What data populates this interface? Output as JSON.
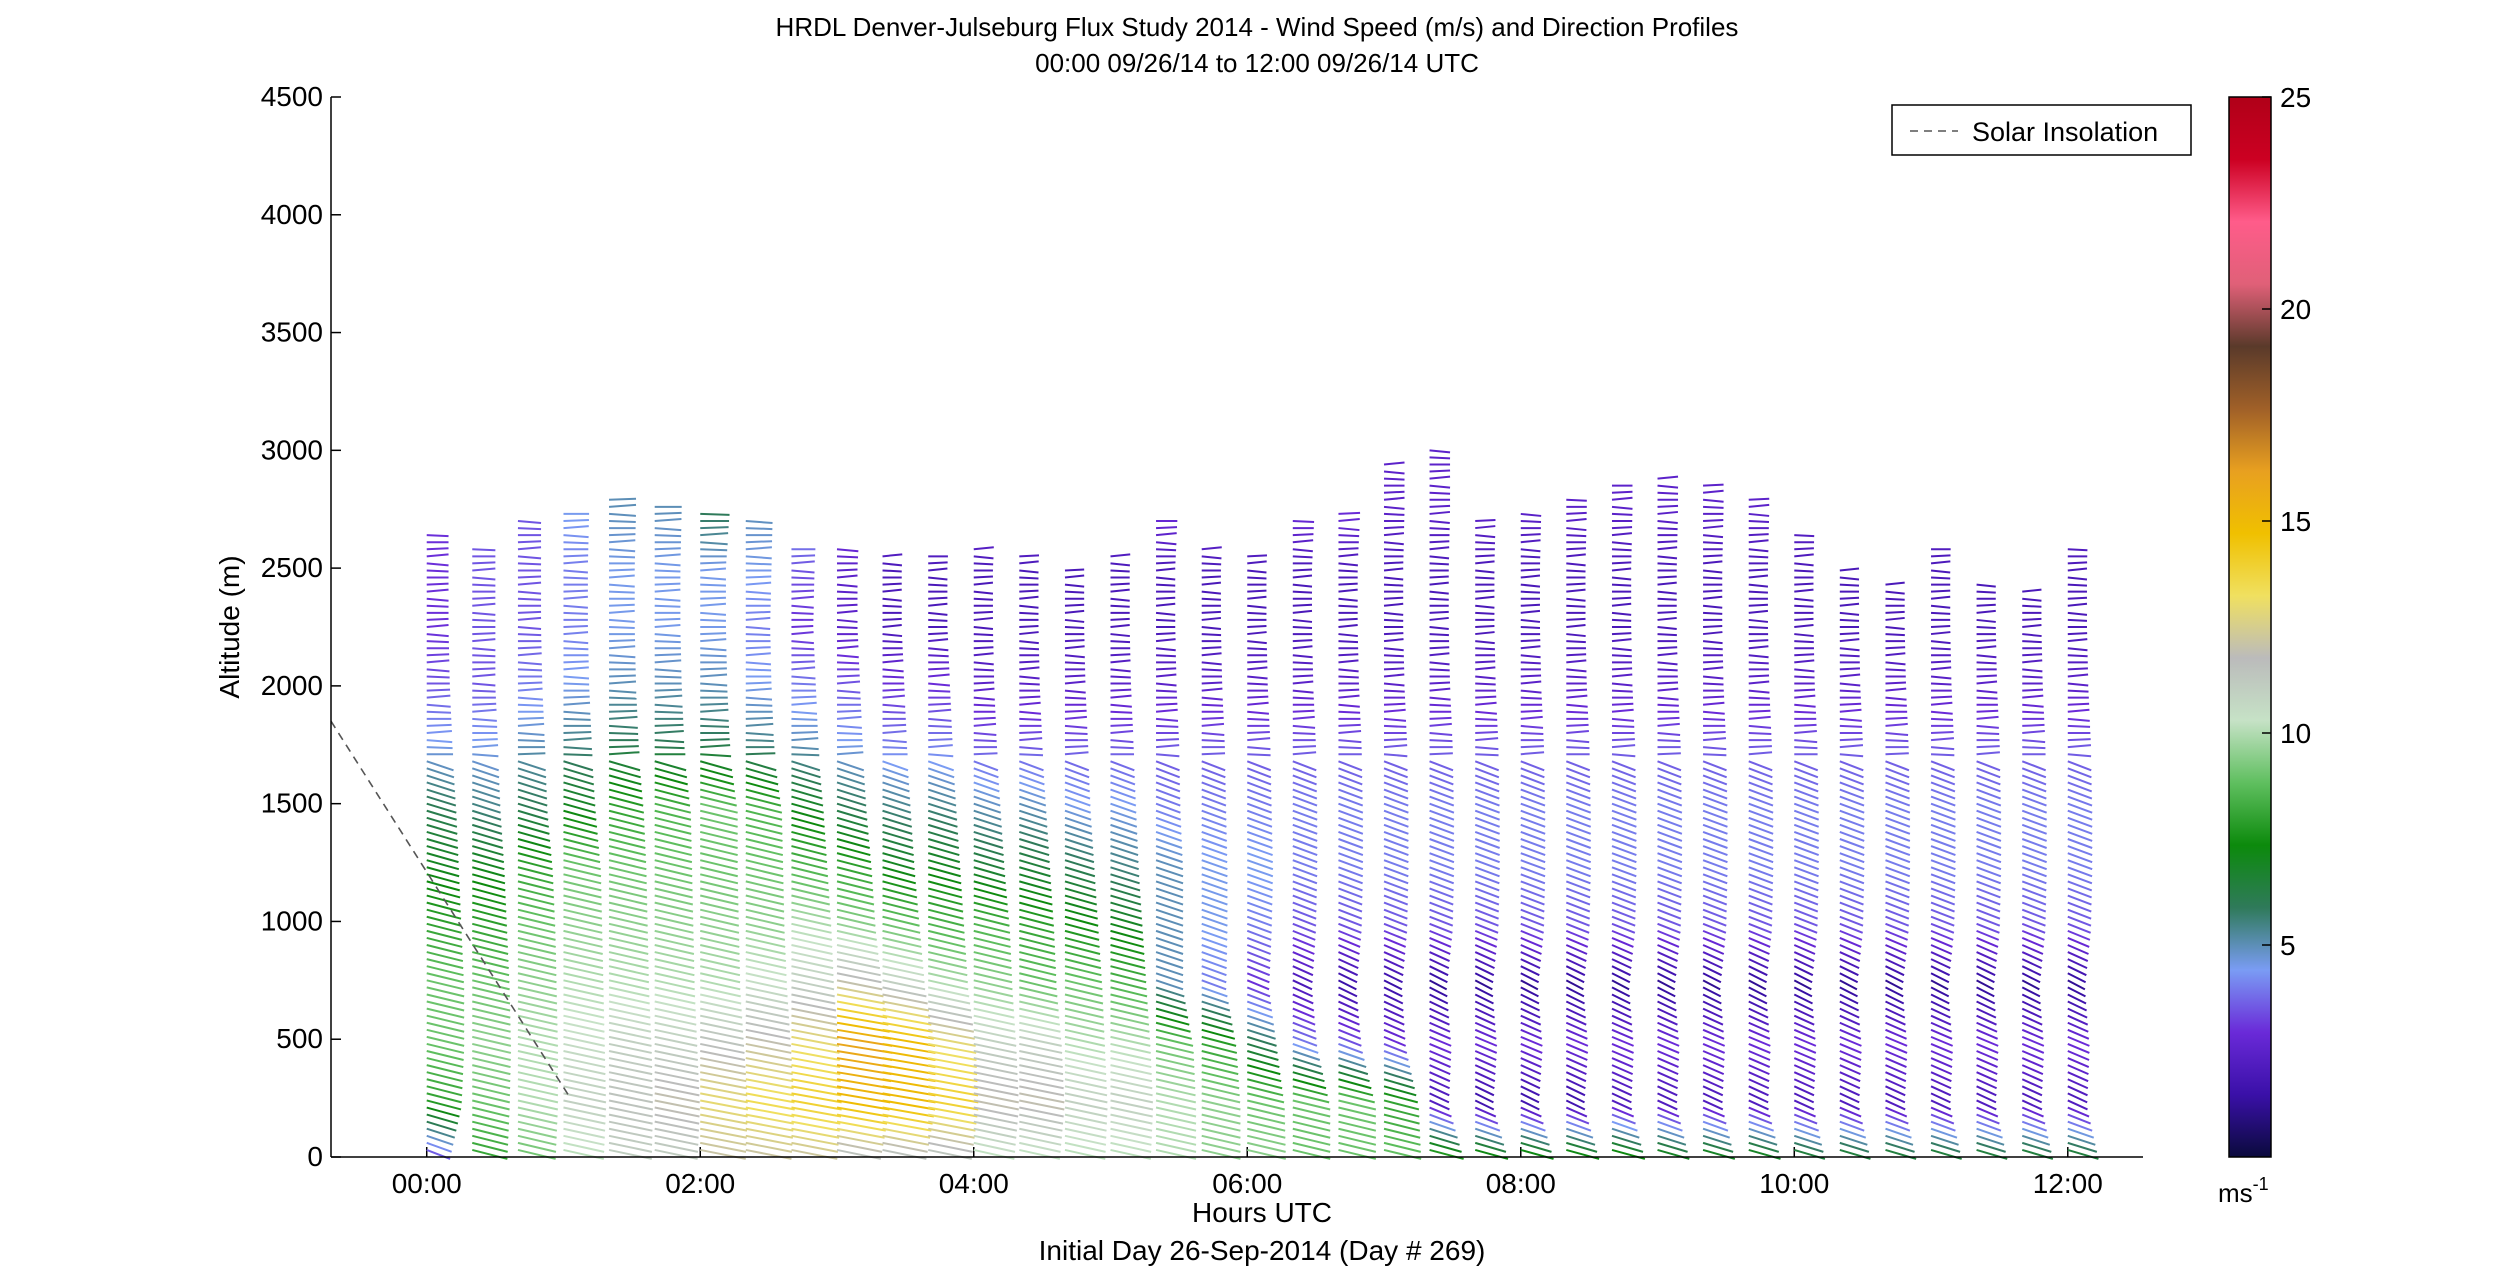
{
  "chart_data": {
    "type": "wind-barb-profile",
    "title": "HRDL Denver-Julseburg Flux Study 2014 - Wind Speed (m/s) and Direction Profiles",
    "subtitle": "00:00 09/26/14 to 12:00 09/26/14  UTC",
    "xlabel": "Hours UTC",
    "xlabel2": "Initial Day 26-Sep-2014 (Day # 269)",
    "ylabel": "Altitude (m)",
    "xlim": [
      -0.7,
      12.55
    ],
    "ylim": [
      0,
      4500
    ],
    "x_ticks": [
      0,
      2,
      4,
      6,
      8,
      10,
      12
    ],
    "x_tick_labels": [
      "00:00",
      "02:00",
      "04:00",
      "06:00",
      "08:00",
      "10:00",
      "12:00"
    ],
    "y_ticks": [
      0,
      500,
      1000,
      1500,
      2000,
      2500,
      3000,
      3500,
      4000,
      4500
    ],
    "y_tick_labels": [
      "0",
      "500",
      "1000",
      "1500",
      "2000",
      "2500",
      "3000",
      "3500",
      "4000",
      "4500"
    ],
    "legend": {
      "position": "top-right",
      "entries": [
        "Solar Insolation"
      ]
    },
    "solar_insolation": {
      "x": [
        -0.7,
        1.05
      ],
      "y": [
        1850,
        250
      ]
    },
    "colorbar": {
      "range": [
        0,
        25
      ],
      "ticks": [
        5,
        10,
        15,
        20,
        25
      ],
      "tick_labels": [
        "5",
        "10",
        "15",
        "20",
        "25"
      ],
      "unit_label": "ms",
      "unit_exponent": "-1",
      "colormap": [
        "#0a0a3c",
        "#3a10a8",
        "#6a2ad8",
        "#7a9cf4",
        "#2f7a5a",
        "#0c8a0c",
        "#5fbf5f",
        "#c6e2c6",
        "#bbbbbb",
        "#f0e060",
        "#f0c000",
        "#e8a020",
        "#a06028",
        "#5a3a2a",
        "#e06078",
        "#ff5c8a",
        "#cc0022",
        "#b00018"
      ]
    },
    "profile_times_hours": [
      0,
      0.333,
      0.667,
      1.0,
      1.333,
      1.667,
      2.0,
      2.333,
      2.667,
      3.0,
      3.333,
      3.667,
      4.0,
      4.333,
      4.667,
      5.0,
      5.333,
      5.667,
      6.0,
      6.333,
      6.667,
      7.0,
      7.333,
      7.667,
      8.0,
      8.333,
      8.667,
      9.0,
      9.333,
      9.667,
      10.0,
      10.333,
      10.667,
      11.0,
      11.333,
      11.667,
      12.0
    ],
    "profile_top_altitude_m": [
      2650,
      2600,
      2700,
      2750,
      2800,
      2780,
      2750,
      2700,
      2600,
      2580,
      2560,
      2560,
      2580,
      2560,
      2500,
      2550,
      2700,
      2600,
      2550,
      2700,
      2750,
      2950,
      3000,
      2700,
      2750,
      2800,
      2850,
      2900,
      2850,
      2800,
      2650,
      2500,
      2450,
      2600,
      2450,
      2400,
      2600
    ],
    "speed_profiles_ms": {
      "altitudes_m": [
        0,
        250,
        500,
        750,
        1000,
        1250,
        1500,
        1750,
        2000,
        2250,
        2500,
        2750
      ],
      "profiles": [
        [
          3,
          8,
          9,
          9,
          8,
          7,
          6,
          4.5,
          3.5,
          3,
          3,
          3
        ],
        [
          8,
          9,
          9.5,
          9,
          8,
          7,
          5.5,
          4.5,
          3.5,
          3.5,
          3.5,
          3.5
        ],
        [
          9,
          10,
          10,
          9.5,
          9,
          8,
          6,
          5,
          4,
          3.5,
          3.5,
          3.5
        ],
        [
          10,
          11,
          10.5,
          10,
          9.5,
          9,
          7,
          5.5,
          4.5,
          4,
          4,
          4.5
        ],
        [
          11,
          11.5,
          11,
          10,
          9.5,
          9,
          8,
          6,
          5,
          4.5,
          4.5,
          5
        ],
        [
          11,
          12,
          11,
          10,
          9.5,
          9,
          8.5,
          6,
          5,
          4.5,
          4.5,
          5
        ],
        [
          12,
          13,
          11.5,
          10,
          9.5,
          9,
          9,
          6,
          5,
          4.5,
          4.5,
          6
        ],
        [
          12,
          13.5,
          12,
          10.5,
          9.5,
          9,
          8.5,
          5.5,
          4.5,
          4,
          4.5,
          5
        ],
        [
          12,
          14,
          13,
          11,
          10,
          8.5,
          7,
          5,
          4,
          3,
          3.5,
          4.5
        ],
        [
          11,
          15,
          16,
          12,
          9.5,
          8,
          6,
          4.5,
          3.5,
          2.5,
          2.5,
          3.5
        ],
        [
          11,
          15,
          15,
          11,
          9,
          7,
          5.5,
          4,
          3,
          2,
          2,
          3
        ],
        [
          11,
          14,
          13,
          10,
          8.5,
          7,
          5.5,
          4,
          3,
          2,
          2,
          3
        ],
        [
          10,
          12,
          11,
          9.5,
          8.5,
          6.5,
          5,
          3.5,
          2.5,
          2,
          2,
          3
        ],
        [
          10,
          12,
          11,
          9,
          8,
          6.5,
          5,
          3.5,
          2.5,
          2,
          2,
          3
        ],
        [
          10,
          11,
          10,
          9,
          7.5,
          6,
          4.5,
          3.5,
          2.5,
          2,
          2,
          3
        ],
        [
          10,
          11,
          10,
          8.5,
          7,
          5.5,
          4.5,
          3.5,
          2.5,
          2,
          2,
          3
        ],
        [
          10,
          10,
          9,
          5,
          5,
          5,
          4,
          3.5,
          2.5,
          2,
          2,
          3
        ],
        [
          9.5,
          9.5,
          8,
          4,
          4.5,
          4.5,
          4,
          3.5,
          2.5,
          2,
          2,
          3
        ],
        [
          9.5,
          9,
          6,
          3,
          4,
          4.5,
          4,
          3.5,
          2.5,
          2,
          2,
          3
        ],
        [
          9,
          9,
          4,
          2,
          3.5,
          4,
          4,
          3.5,
          2.5,
          2,
          2,
          3
        ],
        [
          9,
          9,
          3.5,
          1.5,
          3.5,
          4,
          4,
          3.5,
          2.5,
          2,
          2,
          3
        ],
        [
          9,
          8,
          3,
          1.5,
          3.5,
          4,
          4,
          3.5,
          2.5,
          2,
          2,
          2.5
        ],
        [
          8.5,
          2,
          3,
          1.2,
          3.5,
          4,
          4,
          3.5,
          2.5,
          2,
          2,
          2.5
        ],
        [
          8,
          1.5,
          3,
          1.2,
          3.5,
          4,
          4,
          3.5,
          2.5,
          2,
          2,
          2.5
        ],
        [
          8,
          1.5,
          3,
          1.2,
          3.5,
          4,
          4,
          3.5,
          2.5,
          2,
          2,
          2.5
        ],
        [
          8,
          1.5,
          3,
          1.2,
          3.5,
          4,
          4,
          3.5,
          2.5,
          2,
          2,
          2.5
        ],
        [
          8,
          2,
          3,
          1.2,
          3.5,
          4,
          4,
          3.5,
          2.5,
          2,
          2,
          2.5
        ],
        [
          7.5,
          2,
          3,
          1.2,
          3.5,
          4,
          4,
          3.5,
          2.5,
          2,
          2,
          2.5
        ],
        [
          7.5,
          2,
          3,
          1.2,
          3.5,
          4,
          4,
          3.5,
          2.5,
          2,
          2,
          2.5
        ],
        [
          7.5,
          2,
          3,
          1.2,
          3.5,
          4,
          4,
          3.5,
          2.5,
          2,
          2,
          2.5
        ],
        [
          7,
          2,
          3,
          1.2,
          3.5,
          4,
          4,
          3.5,
          2.5,
          2,
          2,
          2.5
        ],
        [
          7,
          2,
          3,
          1.2,
          3.5,
          4,
          4,
          3.5,
          2.5,
          2,
          2,
          2.5
        ],
        [
          7,
          2,
          3,
          1.2,
          3.5,
          4,
          4,
          3.5,
          2.5,
          2,
          2,
          2.5
        ],
        [
          7,
          2,
          3,
          1.2,
          3.5,
          4,
          4,
          3.5,
          2.5,
          2,
          2,
          2.5
        ],
        [
          7,
          2,
          3,
          1.2,
          3.5,
          4,
          4,
          3.5,
          2.5,
          2,
          2,
          2.5
        ],
        [
          7,
          2,
          3,
          1.2,
          3.5,
          4,
          4,
          3.5,
          2.5,
          2,
          2,
          2.5
        ],
        [
          7,
          2,
          3,
          1.2,
          3.5,
          4,
          4,
          3.5,
          2.5,
          2,
          2,
          2.5
        ]
      ]
    }
  }
}
